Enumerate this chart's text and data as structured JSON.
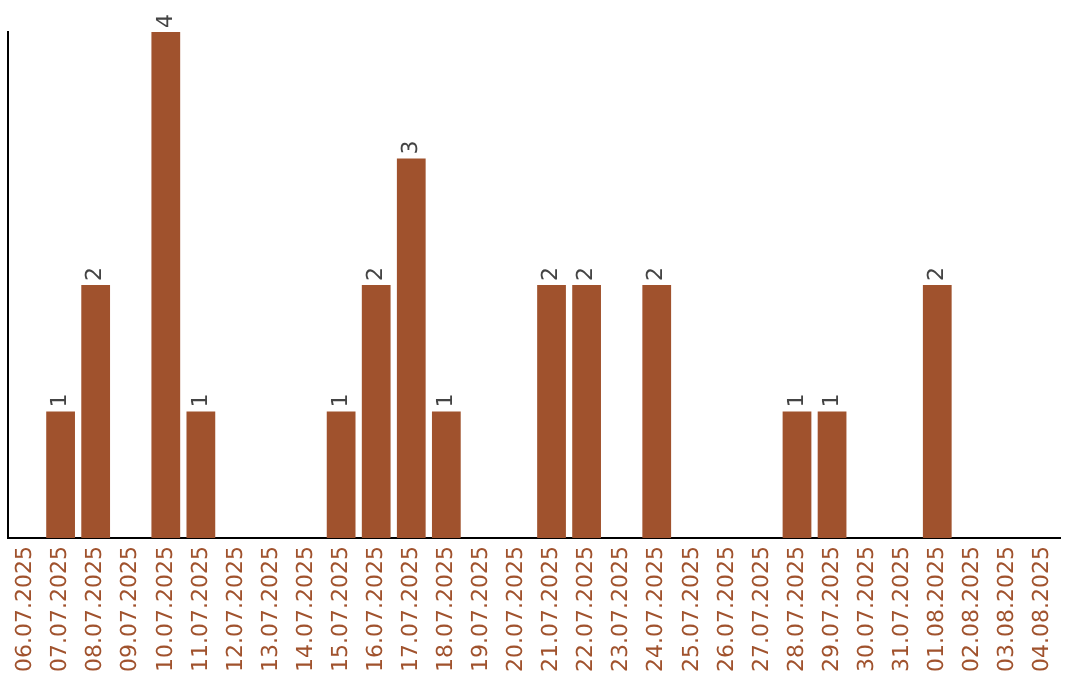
{
  "chart_data": {
    "type": "bar",
    "categories": [
      "06.07.2025",
      "07.07.2025",
      "08.07.2025",
      "09.07.2025",
      "10.07.2025",
      "11.07.2025",
      "12.07.2025",
      "13.07.2025",
      "14.07.2025",
      "15.07.2025",
      "16.07.2025",
      "17.07.2025",
      "18.07.2025",
      "19.07.2025",
      "20.07.2025",
      "21.07.2025",
      "22.07.2025",
      "23.07.2025",
      "24.07.2025",
      "25.07.2025",
      "26.07.2025",
      "27.07.2025",
      "28.07.2025",
      "29.07.2025",
      "30.07.2025",
      "31.07.2025",
      "01.08.2025",
      "02.08.2025",
      "03.08.2025",
      "04.08.2025"
    ],
    "values": [
      0,
      1,
      2,
      0,
      4,
      1,
      0,
      0,
      0,
      1,
      2,
      3,
      1,
      0,
      0,
      2,
      2,
      0,
      2,
      0,
      0,
      0,
      1,
      1,
      0,
      0,
      2,
      0,
      0,
      0
    ],
    "value_labels": [
      null,
      "1",
      "2",
      null,
      "4",
      "1",
      null,
      null,
      null,
      "1",
      "2",
      "3",
      "1",
      null,
      null,
      "2",
      "2",
      null,
      "2",
      null,
      null,
      null,
      "1",
      "1",
      null,
      null,
      "2",
      null,
      null,
      null
    ],
    "color": "#a0522d",
    "ylim": [
      0,
      4
    ],
    "tick_labels": "x",
    "grid": false,
    "legend": false
  }
}
